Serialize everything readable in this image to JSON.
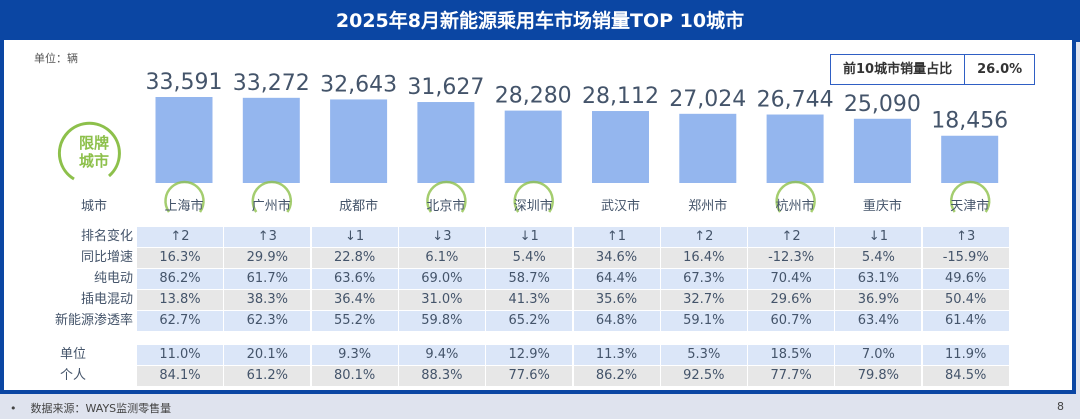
{
  "title": "2025年8月新能源乘用车市场销量TOP 10城市",
  "unit_label": "单位：辆",
  "share_box": {
    "label": "前10城市销量占比",
    "value": "26.0%"
  },
  "badge": {
    "text_line1": "限牌",
    "text_line2": "城市",
    "color": "#8dc04b"
  },
  "colors": {
    "bar": "#94b6ee",
    "header": "#0b46a3"
  },
  "chart_data": {
    "type": "bar",
    "categories": [
      "上海市",
      "广州市",
      "成都市",
      "北京市",
      "深圳市",
      "武汉市",
      "郑州市",
      "杭州市",
      "重庆市",
      "天津市"
    ],
    "values": [
      33591,
      33272,
      32643,
      31627,
      28280,
      28112,
      27024,
      26744,
      25090,
      18456
    ],
    "value_labels": [
      "33,591",
      "33,272",
      "32,643",
      "31,627",
      "28,280",
      "28,112",
      "27,024",
      "26,744",
      "25,090",
      "18,456"
    ],
    "restricted": [
      true,
      true,
      false,
      true,
      true,
      false,
      false,
      true,
      false,
      true
    ],
    "xlabel": "",
    "ylabel": ""
  },
  "table": {
    "city_header": "城市",
    "rows": [
      {
        "label": "排名变化",
        "values": [
          "↑2",
          "↑3",
          "↓1",
          "↓3",
          "↓1",
          "↑1",
          "↑2",
          "↑2",
          "↓1",
          "↑3"
        ]
      },
      {
        "label": "同比增速",
        "values": [
          "16.3%",
          "29.9%",
          "22.8%",
          "6.1%",
          "5.4%",
          "34.6%",
          "16.4%",
          "-12.3%",
          "5.4%",
          "-15.9%"
        ]
      },
      {
        "label": "纯电动",
        "values": [
          "86.2%",
          "61.7%",
          "63.6%",
          "69.0%",
          "58.7%",
          "64.4%",
          "67.3%",
          "70.4%",
          "63.1%",
          "49.6%"
        ]
      },
      {
        "label": "插电混动",
        "values": [
          "13.8%",
          "38.3%",
          "36.4%",
          "31.0%",
          "41.3%",
          "35.6%",
          "32.7%",
          "29.6%",
          "36.9%",
          "50.4%"
        ]
      },
      {
        "label": "新能源渗透率",
        "values": [
          "62.7%",
          "62.3%",
          "55.2%",
          "59.8%",
          "65.2%",
          "64.8%",
          "59.1%",
          "60.7%",
          "63.4%",
          "61.4%"
        ]
      },
      {
        "label": "单位",
        "values": [
          "11.0%",
          "20.1%",
          "9.3%",
          "9.4%",
          "12.9%",
          "11.3%",
          "5.3%",
          "18.5%",
          "7.0%",
          "11.9%"
        ]
      },
      {
        "label": "个人",
        "values": [
          "84.1%",
          "61.2%",
          "80.1%",
          "88.3%",
          "77.6%",
          "86.2%",
          "92.5%",
          "77.7%",
          "79.8%",
          "84.5%"
        ]
      }
    ]
  },
  "footer": {
    "bullet": "•",
    "source": "数据来源：WAYS监测零售量",
    "page": "8"
  }
}
